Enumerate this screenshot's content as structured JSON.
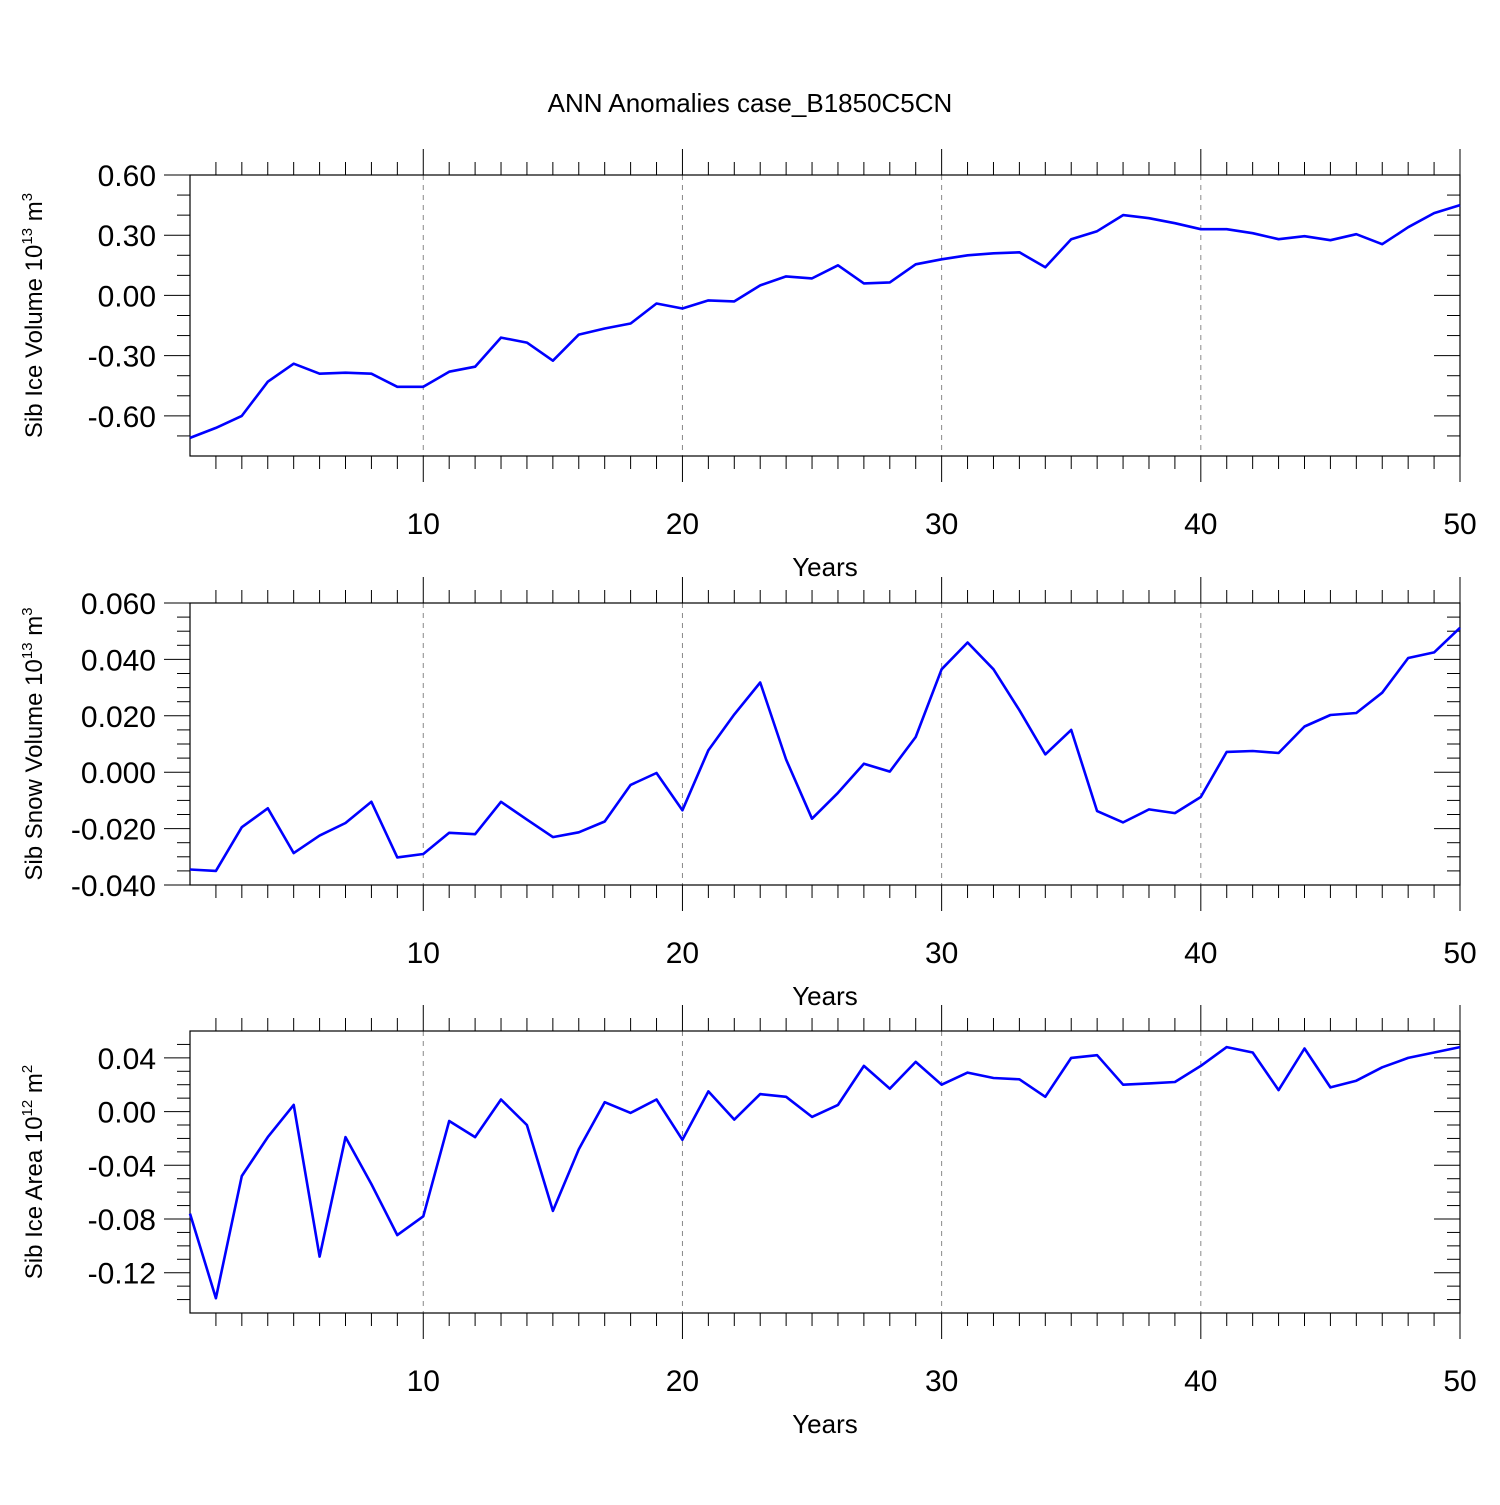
{
  "title": "ANN Anomalies case_B1850C5CN",
  "colors": {
    "line": "#0000ff",
    "axis": "#000000",
    "grid": "#888888"
  },
  "chart_data": [
    {
      "type": "line",
      "ylabel": {
        "text": "Sib Ice Volume 10",
        "exp": "13",
        "unit": " m",
        "unit_exp": "3"
      },
      "xlabel": "Years",
      "xlim": [
        1,
        50
      ],
      "ylim": [
        -0.8,
        0.6
      ],
      "yticks": [
        -0.6,
        -0.3,
        0.0,
        0.3,
        0.6
      ],
      "ytick_labels": [
        "-0.60",
        "-0.30",
        "0.00",
        "0.30",
        "0.60"
      ],
      "yminor": [
        -0.7,
        -0.5,
        -0.4,
        -0.2,
        -0.1,
        0.1,
        0.2,
        0.4,
        0.5
      ],
      "xticks": [
        10,
        20,
        30,
        40,
        50
      ],
      "xtick_labels": [
        "10",
        "20",
        "30",
        "40",
        "50"
      ],
      "grid_x": true,
      "series": [
        {
          "x": [
            1,
            2,
            3,
            4,
            5,
            6,
            7,
            8,
            9,
            10,
            11,
            12,
            13,
            14,
            15,
            16,
            17,
            18,
            19,
            20,
            21,
            22,
            23,
            24,
            25,
            26,
            27,
            28,
            29,
            30,
            31,
            32,
            33,
            34,
            35,
            36,
            37,
            38,
            39,
            40,
            41,
            42,
            43,
            44,
            45,
            46,
            47,
            48,
            49,
            50
          ],
          "values": [
            -0.71,
            -0.66,
            -0.6,
            -0.43,
            -0.34,
            -0.39,
            -0.385,
            -0.39,
            -0.455,
            -0.455,
            -0.38,
            -0.355,
            -0.21,
            -0.235,
            -0.325,
            -0.195,
            -0.165,
            -0.14,
            -0.04,
            -0.065,
            -0.025,
            -0.03,
            0.05,
            0.095,
            0.085,
            0.15,
            0.06,
            0.065,
            0.155,
            0.18,
            0.2,
            0.21,
            0.215,
            0.14,
            0.28,
            0.32,
            0.4,
            0.385,
            0.36,
            0.33,
            0.33,
            0.31,
            0.28,
            0.295,
            0.275,
            0.305,
            0.255,
            0.34,
            0.41,
            0.45
          ]
        }
      ]
    },
    {
      "type": "line",
      "ylabel": {
        "text": "Sib Snow Volume 10",
        "exp": "13",
        "unit": " m",
        "unit_exp": "3"
      },
      "xlabel": "Years",
      "xlim": [
        1,
        50
      ],
      "ylim": [
        -0.04,
        0.06
      ],
      "yticks": [
        -0.04,
        -0.02,
        0.0,
        0.02,
        0.04,
        0.06
      ],
      "ytick_labels": [
        "-0.040",
        "-0.020",
        "0.000",
        "0.020",
        "0.040",
        "0.060"
      ],
      "yminor": [
        -0.035,
        -0.03,
        -0.025,
        -0.015,
        -0.01,
        -0.005,
        0.005,
        0.01,
        0.015,
        0.025,
        0.03,
        0.035,
        0.045,
        0.05,
        0.055
      ],
      "xticks": [
        10,
        20,
        30,
        40,
        50
      ],
      "xtick_labels": [
        "10",
        "20",
        "30",
        "40",
        "50"
      ],
      "grid_x": true,
      "series": [
        {
          "x": [
            1,
            2,
            3,
            4,
            5,
            6,
            7,
            8,
            9,
            10,
            11,
            12,
            13,
            14,
            15,
            16,
            17,
            18,
            19,
            20,
            21,
            22,
            23,
            24,
            25,
            26,
            27,
            28,
            29,
            30,
            31,
            32,
            33,
            34,
            35,
            36,
            37,
            38,
            39,
            40,
            41,
            42,
            43,
            44,
            45,
            46,
            47,
            48,
            49,
            50
          ],
          "values": [
            -0.0345,
            -0.035,
            -0.0195,
            -0.0128,
            -0.0287,
            -0.0225,
            -0.018,
            -0.0105,
            -0.0302,
            -0.029,
            -0.0215,
            -0.022,
            -0.0105,
            -0.0168,
            -0.023,
            -0.0213,
            -0.0175,
            -0.0045,
            -0.0003,
            -0.0135,
            0.0078,
            0.0205,
            0.0318,
            0.0045,
            -0.0165,
            -0.0073,
            0.003,
            0.0002,
            0.0125,
            0.0365,
            0.046,
            0.0365,
            0.022,
            0.0063,
            0.015,
            -0.0138,
            -0.0178,
            -0.0132,
            -0.0145,
            -0.0088,
            0.0072,
            0.0075,
            0.0068,
            0.0162,
            0.0203,
            0.021,
            0.0282,
            0.0405,
            0.0425,
            0.0512
          ]
        }
      ]
    },
    {
      "type": "line",
      "ylabel": {
        "text": "Sib Ice Area 10",
        "exp": "12",
        "unit": " m",
        "unit_exp": "2"
      },
      "xlabel": "Years",
      "xlim": [
        1,
        50
      ],
      "ylim": [
        -0.15,
        0.06
      ],
      "yticks": [
        -0.12,
        -0.08,
        -0.04,
        0.0,
        0.04
      ],
      "ytick_labels": [
        "-0.12",
        "-0.08",
        "-0.04",
        "0.00",
        "0.04"
      ],
      "yminor": [
        -0.14,
        -0.13,
        -0.11,
        -0.1,
        -0.09,
        -0.07,
        -0.06,
        -0.05,
        -0.03,
        -0.02,
        -0.01,
        0.01,
        0.02,
        0.03,
        0.05
      ],
      "xticks": [
        10,
        20,
        30,
        40,
        50
      ],
      "xtick_labels": [
        "10",
        "20",
        "30",
        "40",
        "50"
      ],
      "grid_x": true,
      "series": [
        {
          "x": [
            1,
            2,
            3,
            4,
            5,
            6,
            7,
            8,
            9,
            10,
            11,
            12,
            13,
            14,
            15,
            16,
            17,
            18,
            19,
            20,
            21,
            22,
            23,
            24,
            25,
            26,
            27,
            28,
            29,
            30,
            31,
            32,
            33,
            34,
            35,
            36,
            37,
            38,
            39,
            40,
            41,
            42,
            43,
            44,
            45,
            46,
            47,
            48,
            49,
            50
          ],
          "values": [
            -0.076,
            -0.139,
            -0.048,
            -0.019,
            0.005,
            -0.108,
            -0.019,
            -0.054,
            -0.092,
            -0.078,
            -0.007,
            -0.019,
            0.009,
            -0.01,
            -0.074,
            -0.028,
            0.007,
            -0.001,
            0.009,
            -0.021,
            0.015,
            -0.006,
            0.013,
            0.011,
            -0.004,
            0.005,
            0.034,
            0.017,
            0.037,
            0.02,
            0.029,
            0.025,
            0.024,
            0.011,
            0.04,
            0.042,
            0.02,
            0.021,
            0.022,
            0.034,
            0.048,
            0.044,
            0.016,
            0.047,
            0.018,
            0.023,
            0.033,
            0.04,
            0.044,
            0.048
          ]
        }
      ]
    }
  ]
}
